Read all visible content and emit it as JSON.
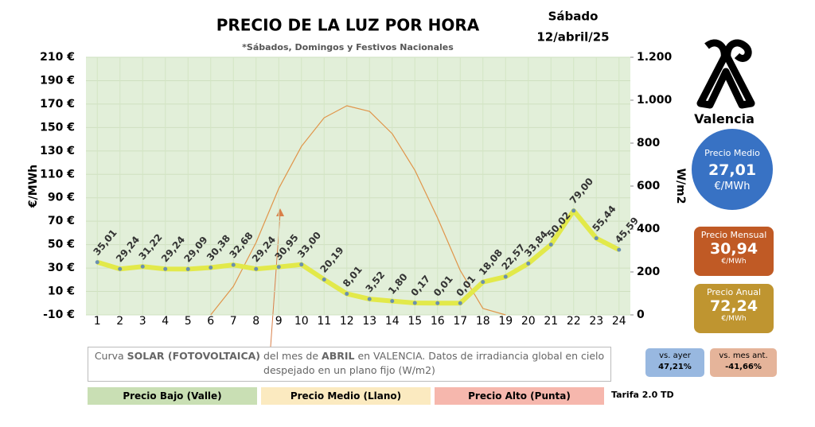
{
  "chart_data": {
    "type": "line",
    "title": "PRECIO DE LA LUZ POR HORA",
    "subtitle": "*Sábados, Domingos y Festivos Nacionales",
    "day": "Sábado",
    "date": "12/abril/25",
    "y_label": "€/MWh",
    "y2_label": "W/m2",
    "categories": [
      "1",
      "2",
      "3",
      "4",
      "5",
      "6",
      "7",
      "8",
      "9",
      "10",
      "11",
      "12",
      "13",
      "14",
      "15",
      "16",
      "17",
      "18",
      "19",
      "20",
      "21",
      "22",
      "23",
      "24"
    ],
    "ylim": [
      -10,
      210
    ],
    "yticks": [
      {
        "value": -10,
        "label": "-10 €"
      },
      {
        "value": 10,
        "label": "10 €"
      },
      {
        "value": 30,
        "label": "30 €"
      },
      {
        "value": 50,
        "label": "50 €"
      },
      {
        "value": 70,
        "label": "70 €"
      },
      {
        "value": 90,
        "label": "90 €"
      },
      {
        "value": 110,
        "label": "110 €"
      },
      {
        "value": 130,
        "label": "130 €"
      },
      {
        "value": 150,
        "label": "150 €"
      },
      {
        "value": 170,
        "label": "170 €"
      },
      {
        "value": 190,
        "label": "190 €"
      },
      {
        "value": 210,
        "label": "210 €"
      }
    ],
    "y2lim": [
      0,
      1200
    ],
    "y2ticks": [
      0,
      200,
      400,
      600,
      800,
      {
        "value": 1000,
        "label": "1.000"
      },
      {
        "value": 1200,
        "label": "1.200"
      }
    ],
    "grid": true,
    "series": [
      {
        "name": "Precio",
        "color": "#e2e94a",
        "values": [
          35.01,
          29.24,
          31.22,
          29.24,
          29.09,
          30.38,
          32.68,
          29.24,
          30.95,
          33.0,
          20.19,
          8.01,
          3.52,
          1.8,
          0.17,
          0.01,
          0.01,
          18.08,
          22.57,
          33.84,
          50.02,
          79.0,
          55.44,
          45.59
        ],
        "value_labels": [
          "35,01",
          "29,24",
          "31,22",
          "29,24",
          "29,09",
          "30,38",
          "32,68",
          "29,24",
          "30,95",
          "33,00",
          "20,19",
          "8,01",
          "3,52",
          "1,80",
          "0,17",
          "0,01",
          "0,01",
          "18,08",
          "22,57",
          "33,84",
          "50,02",
          "79,00",
          "55,44",
          "45,59"
        ]
      },
      {
        "name": "Curva solar",
        "color": "#e0954a",
        "axis": "y2",
        "values": [
          null,
          null,
          null,
          null,
          null,
          0,
          133,
          337,
          589,
          785,
          918,
          974,
          948,
          844,
          674,
          452,
          207,
          30,
          0,
          null,
          null,
          null,
          null,
          null
        ]
      }
    ],
    "note": [
      "Curva ",
      "SOLAR (FOTOVOLTAICA)",
      " del mes de ",
      "ABRIL",
      " en VALENCIA. Datos de irradiancia global en cielo despejado en un plano fijo (W/m2)"
    ],
    "legend": [
      {
        "name": "Precio Bajo (Valle)",
        "color": "#c9dfb4"
      },
      {
        "name": "Precio Medio (Llano)",
        "color": "#fbeac0"
      },
      {
        "name": "Precio Alto (Punta)",
        "color": "#f6b7ad"
      }
    ],
    "tariff": "Tarifa 2.0 TD",
    "city": "Valencia",
    "avg": {
      "label": "Precio Medio",
      "value": "27,01",
      "unit": "€/MWh"
    },
    "monthly": {
      "label": "Precio Mensual",
      "value": "30,94",
      "unit": "€/MWh"
    },
    "yearly": {
      "label": "Precio Anual",
      "value": "72,24",
      "unit": "€/MWh"
    },
    "vs_yesterday": {
      "label": "vs. ayer",
      "value": "47,21%"
    },
    "vs_month": {
      "label": "vs. mes ant.",
      "value": "-41,66%"
    }
  }
}
